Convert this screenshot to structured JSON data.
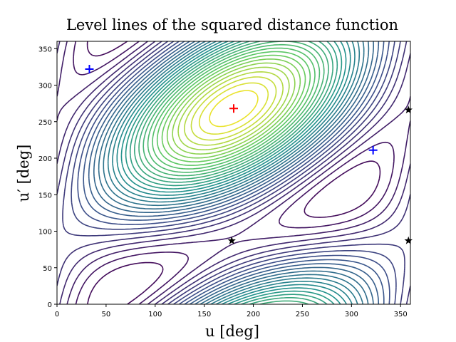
{
  "chart_data": {
    "type": "contour",
    "title": "Level lines of the squared distance function",
    "xlabel": "u [deg]",
    "ylabel": "u′ [deg]",
    "xlim": [
      0,
      360
    ],
    "ylim": [
      0,
      360
    ],
    "xticks": [
      0,
      50,
      100,
      150,
      200,
      250,
      300,
      350
    ],
    "yticks": [
      0,
      50,
      100,
      150,
      200,
      250,
      300,
      350
    ],
    "colormap": "viridis",
    "series": [
      {
        "marker": "plus",
        "color": "#0000ff",
        "x": [
          33,
          322
        ],
        "values": [
          322,
          211
        ]
      },
      {
        "marker": "plus",
        "color": "#ff0000",
        "x": [
          180
        ],
        "values": [
          268
        ]
      },
      {
        "marker": "star",
        "color": "#000000",
        "x": [
          178,
          358,
          358
        ],
        "values": [
          87,
          87,
          266
        ]
      }
    ]
  }
}
